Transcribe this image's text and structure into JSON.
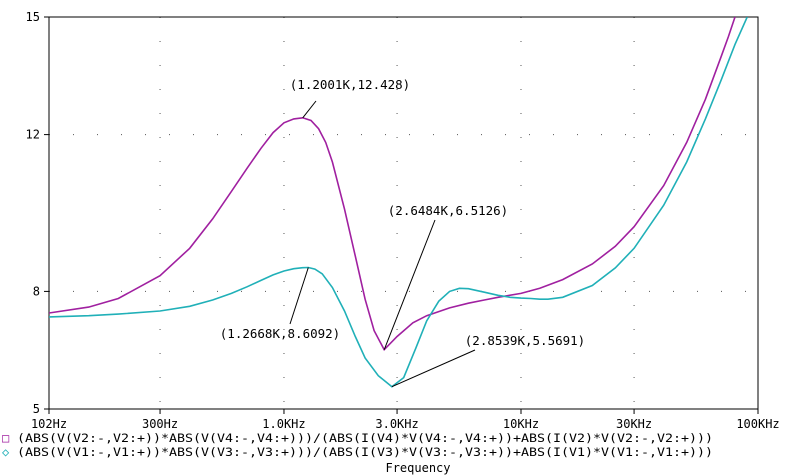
{
  "chart_data": {
    "type": "line",
    "xscale": "log",
    "xlim": [
      102,
      100000
    ],
    "ylim": [
      5,
      15
    ],
    "x_ticks": [
      {
        "v": 102,
        "label": "102Hz"
      },
      {
        "v": 300,
        "label": "300Hz"
      },
      {
        "v": 1000,
        "label": "1.0KHz"
      },
      {
        "v": 3000,
        "label": "3.0KHz"
      },
      {
        "v": 10000,
        "label": "10KHz"
      },
      {
        "v": 30000,
        "label": "30KHz"
      },
      {
        "v": 100000,
        "label": "100KHz"
      }
    ],
    "y_ticks": [
      {
        "v": 5,
        "label": "5"
      },
      {
        "v": 8,
        "label": "8"
      },
      {
        "v": 12,
        "label": "12"
      },
      {
        "v": 15,
        "label": "15"
      }
    ],
    "xlabel": "Frequency",
    "grid": "dotted",
    "series": [
      {
        "name": "(ABS(V(V2:-,V2:+))*ABS(V(V4:-,V4:+)))/(ABS(I(V4)*V(V4:-,V4:+))+ABS(I(V2)*V(V2:-,V2:+)))",
        "marker": "□",
        "color": "#a020a0",
        "x": [
          102,
          150,
          200,
          300,
          400,
          500,
          600,
          700,
          800,
          900,
          1000,
          1100,
          1200,
          1300,
          1400,
          1500,
          1600,
          1800,
          2000,
          2200,
          2400,
          2648,
          3000,
          3500,
          4000,
          5000,
          6000,
          7000,
          8000,
          10000,
          12000,
          15000,
          20000,
          25000,
          30000,
          40000,
          50000,
          60000,
          70000,
          75000,
          80000
        ],
        "y": [
          7.45,
          7.6,
          7.82,
          8.4,
          9.1,
          9.85,
          10.55,
          11.15,
          11.65,
          12.05,
          12.3,
          12.4,
          12.428,
          12.36,
          12.15,
          11.8,
          11.3,
          10.1,
          8.9,
          7.8,
          7.0,
          6.5126,
          6.85,
          7.2,
          7.38,
          7.58,
          7.7,
          7.78,
          7.85,
          7.95,
          8.08,
          8.3,
          8.7,
          9.15,
          9.65,
          10.7,
          11.8,
          12.9,
          14.0,
          14.5,
          15.0
        ]
      },
      {
        "name": "(ABS(V(V1:-,V1:+))*ABS(V(V3:-,V3:+)))/(ABS(I(V3)*V(V3:-,V3:+))+ABS(I(V1)*V(V1:-,V1:+)))",
        "marker": "◇",
        "color": "#20b0b8",
        "x": [
          102,
          150,
          200,
          300,
          400,
          500,
          600,
          700,
          800,
          900,
          1000,
          1100,
          1200,
          1267,
          1350,
          1450,
          1600,
          1800,
          2000,
          2200,
          2500,
          2854,
          3200,
          3600,
          4000,
          4500,
          5000,
          5500,
          6000,
          7000,
          8000,
          9000,
          10000,
          11000,
          12000,
          13000,
          15000,
          20000,
          25000,
          30000,
          40000,
          50000,
          60000,
          70000,
          80000,
          90000
        ],
        "y": [
          7.35,
          7.38,
          7.42,
          7.5,
          7.62,
          7.78,
          7.95,
          8.12,
          8.28,
          8.42,
          8.52,
          8.58,
          8.605,
          8.6092,
          8.57,
          8.45,
          8.1,
          7.5,
          6.85,
          6.3,
          5.85,
          5.5691,
          5.8,
          6.55,
          7.25,
          7.75,
          8.0,
          8.08,
          8.07,
          7.98,
          7.9,
          7.85,
          7.83,
          7.82,
          7.8,
          7.8,
          7.85,
          8.15,
          8.6,
          9.1,
          10.2,
          11.3,
          12.4,
          13.4,
          14.3,
          15.0
        ]
      }
    ],
    "annotations": [
      {
        "text": "(1.2001K,12.428)",
        "x": 1200.1,
        "y": 12.428,
        "series": 0
      },
      {
        "text": "(2.6484K,6.5126)",
        "x": 2648.4,
        "y": 6.5126,
        "series": 0
      },
      {
        "text": "(1.2668K,8.6092)",
        "x": 1266.8,
        "y": 8.6092,
        "series": 1
      },
      {
        "text": "(2.8539K,5.5691)",
        "x": 2853.9,
        "y": 5.5691,
        "series": 1
      }
    ]
  }
}
